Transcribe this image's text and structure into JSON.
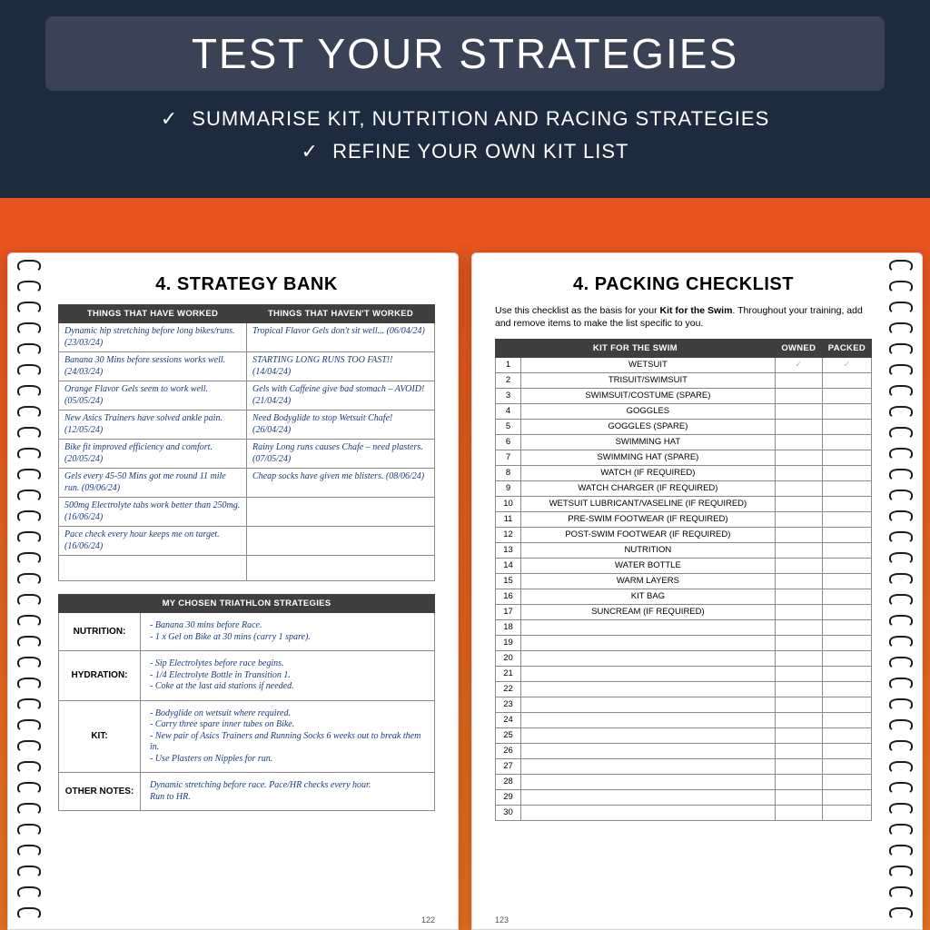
{
  "header": {
    "title": "TEST YOUR STRATEGIES",
    "sub1": "SUMMARISE KIT, NUTRITION AND RACING STRATEGIES",
    "sub2": "REFINE YOUR OWN KIT LIST",
    "check": "✓"
  },
  "left_page": {
    "title": "4. STRATEGY BANK",
    "col1": "THINGS THAT HAVE WORKED",
    "col2": "THINGS THAT HAVEN'T WORKED",
    "rows": [
      [
        "Dynamic hip stretching before long bikes/runs. (23/03/24)",
        "Tropical Flavor Gels don't sit well... (06/04/24)"
      ],
      [
        "Banana 30 Mins before sessions works well. (24/03/24)",
        "STARTING LONG RUNS TOO FAST!! (14/04/24)"
      ],
      [
        "Orange Flavor Gels seem to work well. (05/05/24)",
        "Gels with Caffeine give bad stomach – AVOID! (21/04/24)"
      ],
      [
        "New Asics Trainers have solved ankle pain. (12/05/24)",
        "Need Bodyglide to stop Wetsuit Chafe! (26/04/24)"
      ],
      [
        "Bike fit improved efficiency and comfort. (20/05/24)",
        "Rainy Long runs causes Chafe – need plasters. (07/05/24)"
      ],
      [
        "Gels every 45-50 Mins got me round 11 mile run. (09/06/24)",
        "Cheap socks have given me blisters. (08/06/24)"
      ],
      [
        "500mg Electrolyte tabs work better than 250mg. (16/06/24)",
        ""
      ],
      [
        "Pace check every hour keeps me on target. (16/06/24)",
        ""
      ],
      [
        "",
        ""
      ]
    ],
    "strategies_header": "MY CHOSEN TRIATHLON STRATEGIES",
    "strategies": [
      {
        "label": "NUTRITION:",
        "content": "- Banana 30 mins before Race.\n- 1 x Gel on Bike at 30 mins (carry 1 spare)."
      },
      {
        "label": "HYDRATION:",
        "content": "- Sip Electrolytes before race begins.\n- 1/4 Electrolyte Bottle in Transition 1.\n- Coke at the last aid stations if needed."
      },
      {
        "label": "KIT:",
        "content": "- Bodyglide on wetsuit where required.\n- Carry three spare inner tubes on Bike.\n- New pair of Asics Trainers and Running Socks 6 weeks out to break them in.\n- Use Plasters on Nipples for run."
      },
      {
        "label": "OTHER NOTES:",
        "content": "Dynamic stretching before race. Pace/HR checks every hour.\nRun to HR."
      }
    ],
    "pagenum": "122"
  },
  "right_page": {
    "title": "4. PACKING CHECKLIST",
    "intro_a": "Use this checklist as the basis for your ",
    "intro_b": "Kit for the Swim",
    "intro_c": ". Throughout your training, add and remove items to make the list specific to you.",
    "header_item": "KIT FOR THE SWIM",
    "header_owned": "OWNED",
    "header_packed": "PACKED",
    "items": [
      "WETSUIT",
      "TRISUIT/SWIMSUIT",
      "SWIMSUIT/COSTUME (SPARE)",
      "GOGGLES",
      "GOGGLES (SPARE)",
      "SWIMMING HAT",
      "SWIMMING HAT (SPARE)",
      "WATCH (IF REQUIRED)",
      "WATCH CHARGER (IF REQUIRED)",
      "WETSUIT LUBRICANT/VASELINE (IF REQUIRED)",
      "PRE-SWIM FOOTWEAR (IF REQUIRED)",
      "POST-SWIM FOOTWEAR (IF REQUIRED)",
      "NUTRITION",
      "WATER BOTTLE",
      "WARM LAYERS",
      "KIT BAG",
      "SUNCREAM (IF REQUIRED)",
      "",
      "",
      "",
      "",
      "",
      "",
      "",
      "",
      "",
      "",
      "",
      "",
      ""
    ],
    "tick": "✓",
    "pagenum": "123"
  },
  "colors": {
    "header_bg": "#1e2a3e",
    "band_bg": "rgba(255,255,255,0.12)",
    "gradient_top": "#e84a1f",
    "gradient_bottom": "#e8751f",
    "table_header": "#3f3f3f",
    "handwriting": "#1a3c7a"
  }
}
